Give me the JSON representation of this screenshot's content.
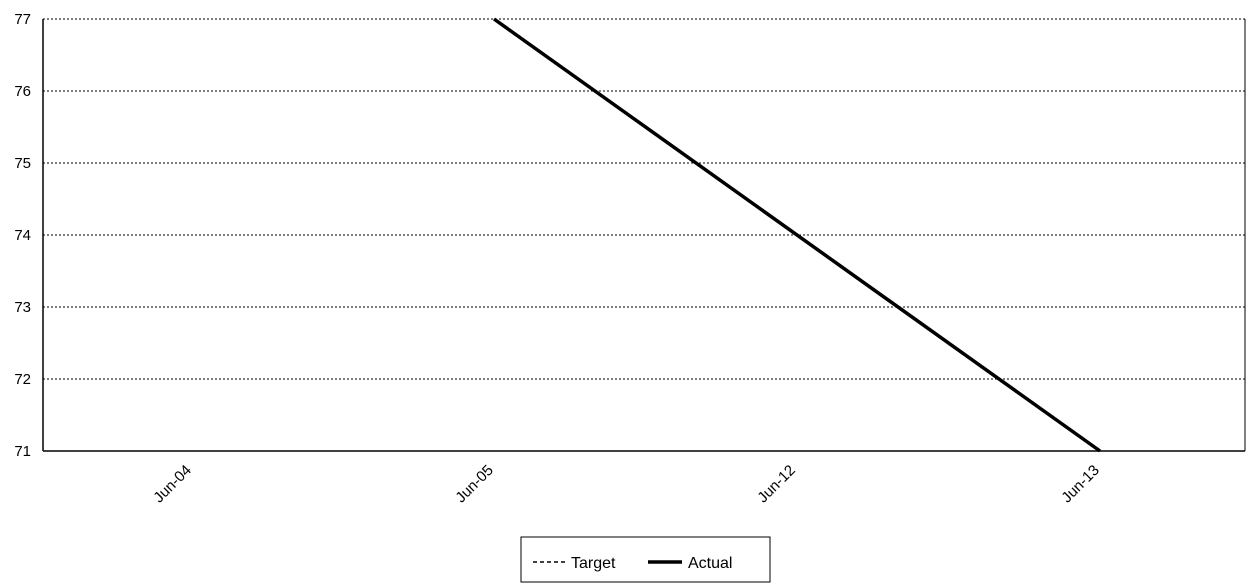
{
  "chart_data": {
    "type": "line",
    "title": "",
    "xlabel": "",
    "ylabel": "",
    "categories": [
      "Jun-04",
      "Jun-05",
      "Jun-12",
      "Jun-13"
    ],
    "ylim": [
      71,
      77
    ],
    "yticks": [
      71,
      72,
      73,
      74,
      75,
      76,
      77
    ],
    "grid": true,
    "legend_position": "bottom",
    "series": [
      {
        "name": "Target",
        "line_style": "dashed",
        "color": "#000000",
        "values": [
          null,
          null,
          null,
          null
        ]
      },
      {
        "name": "Actual",
        "line_style": "solid",
        "color": "#000000",
        "values": [
          null,
          77,
          null,
          71
        ]
      }
    ]
  }
}
